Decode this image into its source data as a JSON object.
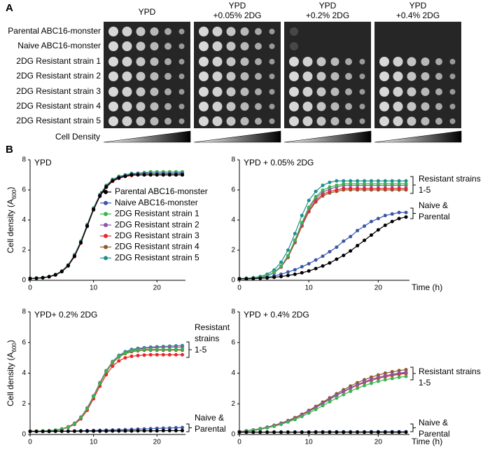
{
  "panel_a": {
    "label": "A",
    "columns": [
      [
        "YPD"
      ],
      [
        "YPD",
        "+0.05% 2DG"
      ],
      [
        "YPD",
        "+0.2% 2DG"
      ],
      [
        "YPD",
        "+0.4% 2DG"
      ]
    ],
    "rows": [
      "Parental ABC16-monster",
      "Naive ABC16-monster",
      "2DG Resistant strain 1",
      "2DG Resistant strain 2",
      "2DG Resistant strain 3",
      "2DG Resistant strain 4",
      "2DG Resistant strain 5"
    ],
    "density_label": "Cell Density"
  },
  "panel_b": {
    "label": "B"
  },
  "chart_data": [
    {
      "type": "line",
      "title": "YPD",
      "y_label": "Cell density (A600)",
      "legend": "right",
      "x": [
        0,
        1,
        2,
        3,
        4,
        5,
        6,
        7,
        8,
        9,
        10,
        11,
        12,
        13,
        14,
        15,
        16,
        17,
        18,
        19,
        20,
        21,
        22,
        23,
        24
      ],
      "xlim": [
        0,
        24.5
      ],
      "xticks": [
        0,
        10,
        20
      ],
      "ylim": [
        0,
        8
      ],
      "yticks": [
        0,
        2,
        4,
        6,
        8
      ],
      "series": [
        {
          "name": "Parental ABC16-monster",
          "color": "#000000",
          "values": [
            0.12,
            0.14,
            0.17,
            0.24,
            0.36,
            0.58,
            0.97,
            1.6,
            2.5,
            3.6,
            4.7,
            5.6,
            6.2,
            6.6,
            6.8,
            6.9,
            7,
            7,
            7,
            7,
            7,
            7,
            7,
            7,
            7
          ]
        },
        {
          "name": "Naive ABC16-monster",
          "color": "#3a56a6",
          "values": [
            0.12,
            0.14,
            0.17,
            0.24,
            0.37,
            0.6,
            1.0,
            1.65,
            2.55,
            3.65,
            4.75,
            5.65,
            6.25,
            6.65,
            6.85,
            6.95,
            7.05,
            7.1,
            7.1,
            7.1,
            7.1,
            7.1,
            7.1,
            7.1,
            7.1
          ]
        },
        {
          "name": "2DG Resistant strain 1",
          "color": "#39b54a",
          "values": [
            0.12,
            0.14,
            0.18,
            0.25,
            0.38,
            0.62,
            1.02,
            1.7,
            2.6,
            3.7,
            4.8,
            5.7,
            6.3,
            6.7,
            6.9,
            7,
            7.1,
            7.1,
            7.15,
            7.2,
            7.2,
            7.2,
            7.2,
            7.2,
            7.2
          ]
        },
        {
          "name": "2DG Resistant strain 2",
          "color": "#8e56a4",
          "values": [
            0.12,
            0.14,
            0.17,
            0.24,
            0.36,
            0.59,
            0.98,
            1.62,
            2.52,
            3.62,
            4.72,
            5.62,
            6.22,
            6.62,
            6.82,
            6.95,
            7.05,
            7.1,
            7.1,
            7.1,
            7.1,
            7.1,
            7.1,
            7.1,
            7.1
          ]
        },
        {
          "name": "2DG Resistant strain 3",
          "color": "#e8262b",
          "values": [
            0.12,
            0.14,
            0.17,
            0.23,
            0.35,
            0.57,
            0.95,
            1.57,
            2.47,
            3.57,
            4.67,
            5.57,
            6.17,
            6.57,
            6.77,
            6.9,
            6.95,
            7,
            7,
            7,
            7,
            7,
            7,
            7,
            7
          ]
        },
        {
          "name": "2DG Resistant strain 4",
          "color": "#8b5a2b",
          "values": [
            0.12,
            0.14,
            0.17,
            0.24,
            0.36,
            0.58,
            0.96,
            1.58,
            2.48,
            3.58,
            4.68,
            5.58,
            6.18,
            6.58,
            6.78,
            6.9,
            6.97,
            7,
            7,
            7,
            7,
            7,
            7,
            7,
            7
          ]
        },
        {
          "name": "2DG Resistant strain 5",
          "color": "#1e8f8f",
          "values": [
            0.12,
            0.15,
            0.18,
            0.25,
            0.38,
            0.6,
            1.0,
            1.66,
            2.56,
            3.66,
            4.76,
            5.66,
            6.26,
            6.66,
            6.86,
            6.97,
            7.05,
            7.1,
            7.1,
            7.1,
            7.1,
            7.1,
            7.1,
            7.1,
            7.15
          ]
        }
      ]
    },
    {
      "type": "line",
      "title": "YPD + 0.05% 2DG",
      "x_label": "Time (h)",
      "x": [
        0,
        1,
        2,
        3,
        4,
        5,
        6,
        7,
        8,
        9,
        10,
        11,
        12,
        13,
        14,
        15,
        16,
        17,
        18,
        19,
        20,
        21,
        22,
        23,
        24
      ],
      "xlim": [
        0,
        24.5
      ],
      "xticks": [
        0,
        10,
        20
      ],
      "ylim": [
        0,
        8
      ],
      "yticks": [
        0,
        2,
        4,
        6,
        8
      ],
      "annotations": [
        {
          "lines": [
            "Resistant strains",
            "1-5"
          ]
        },
        {
          "lines": [
            "Naive &",
            "Parental"
          ]
        }
      ],
      "series": [
        {
          "color": "#000000",
          "values": [
            0.1,
            0.1,
            0.11,
            0.13,
            0.16,
            0.2,
            0.25,
            0.32,
            0.4,
            0.5,
            0.62,
            0.78,
            0.95,
            1.15,
            1.4,
            1.65,
            1.95,
            2.3,
            2.65,
            3,
            3.35,
            3.65,
            3.9,
            4.1,
            4.2
          ]
        },
        {
          "color": "#3a56a6",
          "values": [
            0.1,
            0.1,
            0.12,
            0.15,
            0.2,
            0.3,
            0.4,
            0.55,
            0.7,
            0.9,
            1.1,
            1.35,
            1.6,
            1.9,
            2.2,
            2.6,
            2.9,
            3.3,
            3.6,
            3.9,
            4.1,
            4.3,
            4.4,
            4.5,
            4.5
          ]
        },
        {
          "color": "#39b54a",
          "values": [
            0.11,
            0.12,
            0.15,
            0.2,
            0.31,
            0.53,
            0.94,
            1.64,
            2.67,
            3.83,
            4.85,
            5.56,
            5.98,
            6.19,
            6.3,
            6.4,
            6.4,
            6.4,
            6.4,
            6.4,
            6.4,
            6.4,
            6.4,
            6.4,
            6.4
          ]
        },
        {
          "color": "#8e56a4",
          "values": [
            0.11,
            0.12,
            0.15,
            0.2,
            0.3,
            0.5,
            0.9,
            1.6,
            2.6,
            3.75,
            4.75,
            5.45,
            5.85,
            6.05,
            6.2,
            6.3,
            6.3,
            6.3,
            6.3,
            6.3,
            6.3,
            6.3,
            6.3,
            6.3,
            6.3
          ]
        },
        {
          "color": "#e8262b",
          "values": [
            0.11,
            0.12,
            0.15,
            0.2,
            0.3,
            0.5,
            0.88,
            1.55,
            2.55,
            3.65,
            4.6,
            5.3,
            5.7,
            5.9,
            6,
            6.1,
            6.1,
            6.1,
            6.1,
            6.1,
            6.1,
            6.1,
            6.1,
            6.1,
            6.1
          ]
        },
        {
          "color": "#8b5a2b",
          "values": [
            0.11,
            0.12,
            0.15,
            0.2,
            0.3,
            0.5,
            0.88,
            1.52,
            2.5,
            3.6,
            4.55,
            5.2,
            5.6,
            5.8,
            5.9,
            6,
            6,
            6,
            6,
            6,
            6,
            6,
            6,
            6,
            6
          ]
        },
        {
          "color": "#1e8f8f",
          "values": [
            0.12,
            0.14,
            0.18,
            0.25,
            0.4,
            0.68,
            1.2,
            2,
            3.1,
            4.3,
            5.3,
            5.9,
            6.3,
            6.5,
            6.6,
            6.6,
            6.6,
            6.6,
            6.6,
            6.6,
            6.6,
            6.6,
            6.6,
            6.6,
            6.6
          ]
        }
      ]
    },
    {
      "type": "line",
      "title": "YPD+ 0.2% 2DG",
      "y_label": "Cell density (A600)",
      "x": [
        0,
        1,
        2,
        3,
        4,
        5,
        6,
        7,
        8,
        9,
        10,
        11,
        12,
        13,
        14,
        15,
        16,
        17,
        18,
        19,
        20,
        21,
        22,
        23,
        24
      ],
      "xlim": [
        0,
        24.5
      ],
      "xticks": [
        0,
        10,
        20
      ],
      "ylim": [
        0,
        8
      ],
      "yticks": [
        0,
        2,
        4,
        6,
        8
      ],
      "annotations": [
        {
          "lines": [
            "Resistant",
            "strains",
            "1-5"
          ]
        },
        {
          "lines": [
            "Naive &",
            "Parental"
          ]
        }
      ],
      "series": [
        {
          "color": "#000000",
          "values": [
            0.2,
            0.2,
            0.2,
            0.2,
            0.21,
            0.21,
            0.21,
            0.21,
            0.22,
            0.22,
            0.22,
            0.22,
            0.22,
            0.23,
            0.23,
            0.23,
            0.23,
            0.24,
            0.24,
            0.24,
            0.24,
            0.25,
            0.25,
            0.25,
            0.25
          ]
        },
        {
          "color": "#3a56a6",
          "values": [
            0.2,
            0.2,
            0.2,
            0.21,
            0.21,
            0.22,
            0.22,
            0.23,
            0.24,
            0.25,
            0.26,
            0.27,
            0.28,
            0.29,
            0.3,
            0.31,
            0.33,
            0.35,
            0.36,
            0.38,
            0.4,
            0.41,
            0.42,
            0.44,
            0.45
          ]
        },
        {
          "color": "#39b54a",
          "values": [
            0.21,
            0.21,
            0.22,
            0.24,
            0.28,
            0.35,
            0.48,
            0.7,
            1.09,
            1.68,
            2.47,
            3.33,
            4.12,
            4.71,
            5.1,
            5.32,
            5.45,
            5.5,
            5.55,
            5.55,
            5.55,
            5.55,
            5.55,
            5.55,
            5.55
          ]
        },
        {
          "color": "#8e56a4",
          "values": [
            0.21,
            0.21,
            0.22,
            0.24,
            0.28,
            0.36,
            0.5,
            0.73,
            1.13,
            1.73,
            2.52,
            3.38,
            4.16,
            4.74,
            5.13,
            5.36,
            5.5,
            5.57,
            5.62,
            5.65,
            5.67,
            5.7,
            5.7,
            5.7,
            5.7
          ]
        },
        {
          "color": "#e8262b",
          "values": [
            0.21,
            0.21,
            0.22,
            0.24,
            0.27,
            0.34,
            0.46,
            0.66,
            1.02,
            1.58,
            2.33,
            3.15,
            3.9,
            4.45,
            4.8,
            5,
            5.1,
            5.15,
            5.18,
            5.2,
            5.2,
            5.2,
            5.2,
            5.2,
            5.2
          ]
        },
        {
          "color": "#8b5a2b",
          "values": [
            0.21,
            0.21,
            0.22,
            0.24,
            0.28,
            0.35,
            0.48,
            0.7,
            1.08,
            1.66,
            2.44,
            3.3,
            4.08,
            4.67,
            5.06,
            5.28,
            5.4,
            5.46,
            5.5,
            5.5,
            5.5,
            5.5,
            5.5,
            5.5,
            5.5
          ]
        },
        {
          "color": "#1e8f8f",
          "values": [
            0.21,
            0.21,
            0.22,
            0.24,
            0.28,
            0.36,
            0.5,
            0.72,
            1.11,
            1.7,
            2.5,
            3.36,
            4.16,
            4.76,
            5.16,
            5.4,
            5.55,
            5.62,
            5.66,
            5.7,
            5.72,
            5.74,
            5.76,
            5.78,
            5.8
          ]
        }
      ]
    },
    {
      "type": "line",
      "title": "YPD + 0.4% 2DG",
      "x_label": "Time (h)",
      "x": [
        0,
        1,
        2,
        3,
        4,
        5,
        6,
        7,
        8,
        9,
        10,
        11,
        12,
        13,
        14,
        15,
        16,
        17,
        18,
        19,
        20,
        21,
        22,
        23,
        24
      ],
      "xlim": [
        0,
        24.5
      ],
      "xticks": [
        0,
        10,
        20
      ],
      "ylim": [
        0,
        8
      ],
      "yticks": [
        0,
        2,
        4,
        6,
        8
      ],
      "annotations": [
        {
          "lines": [
            "Resistant strains",
            "1-5"
          ]
        },
        {
          "lines": [
            "Naive &",
            "Parental"
          ]
        }
      ],
      "series": [
        {
          "color": "#000000",
          "values": [
            0.15,
            0.15,
            0.15,
            0.15,
            0.15,
            0.15,
            0.15,
            0.15,
            0.15,
            0.15,
            0.15,
            0.15,
            0.15,
            0.15,
            0.15,
            0.15,
            0.15,
            0.15,
            0.15,
            0.15,
            0.15,
            0.15,
            0.15,
            0.15,
            0.15
          ]
        },
        {
          "color": "#3a56a6",
          "values": [
            0.16,
            0.16,
            0.16,
            0.16,
            0.16,
            0.16,
            0.16,
            0.16,
            0.16,
            0.16,
            0.16,
            0.17,
            0.17,
            0.17,
            0.17,
            0.17,
            0.17,
            0.17,
            0.17,
            0.18,
            0.18,
            0.18,
            0.18,
            0.18,
            0.18
          ]
        },
        {
          "color": "#39b54a",
          "values": [
            0.17,
            0.21,
            0.27,
            0.33,
            0.43,
            0.53,
            0.66,
            0.81,
            0.98,
            1.17,
            1.4,
            1.63,
            1.88,
            2.13,
            2.37,
            2.6,
            2.82,
            3.02,
            3.19,
            3.34,
            3.47,
            3.57,
            3.65,
            3.73,
            3.79
          ]
        },
        {
          "color": "#8e56a4",
          "values": [
            0.18,
            0.23,
            0.29,
            0.36,
            0.46,
            0.57,
            0.71,
            0.87,
            1.05,
            1.26,
            1.5,
            1.75,
            2.02,
            2.29,
            2.55,
            2.8,
            3.03,
            3.25,
            3.43,
            3.59,
            3.73,
            3.84,
            3.93,
            4.01,
            4.07
          ]
        },
        {
          "color": "#e8262b",
          "values": [
            0.18,
            0.23,
            0.29,
            0.36,
            0.46,
            0.57,
            0.71,
            0.88,
            1.06,
            1.28,
            1.52,
            1.77,
            2.03,
            2.3,
            2.55,
            2.79,
            3.01,
            3.21,
            3.38,
            3.53,
            3.66,
            3.76,
            3.85,
            3.92,
            3.98
          ]
        },
        {
          "color": "#8b5a2b",
          "values": [
            0.19,
            0.24,
            0.3,
            0.38,
            0.48,
            0.6,
            0.74,
            0.91,
            1.1,
            1.32,
            1.57,
            1.83,
            2.11,
            2.39,
            2.66,
            2.92,
            3.16,
            3.38,
            3.57,
            3.74,
            3.88,
            4.0,
            4.09,
            4.17,
            4.23
          ]
        },
        {
          "color": "#1e8f8f",
          "values": [
            0.18,
            0.23,
            0.29,
            0.37,
            0.47,
            0.58,
            0.72,
            0.88,
            1.07,
            1.28,
            1.52,
            1.78,
            2.05,
            2.32,
            2.58,
            2.82,
            3.05,
            3.26,
            3.44,
            3.6,
            3.73,
            3.83,
            3.91,
            3.97,
            4.02
          ]
        }
      ]
    }
  ]
}
